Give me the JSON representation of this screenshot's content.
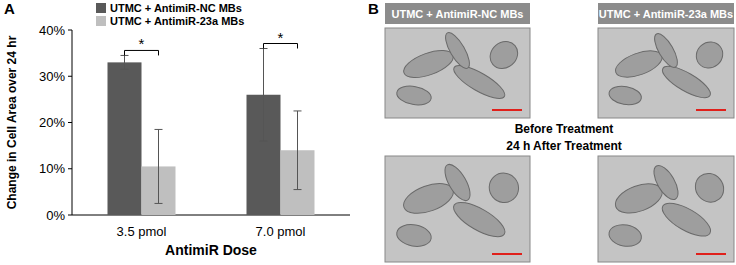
{
  "chart_data": {
    "type": "bar",
    "panel_label": "A",
    "y_label": "Change in Cell Area over 24 hr",
    "x_label": "AntimiR Dose",
    "categories": [
      "3.5 pmol",
      "7.0 pmol"
    ],
    "series": [
      {
        "name": "UTMC + AntimiR-NC MBs",
        "color": "#595959",
        "values": [
          33,
          26
        ],
        "errors": [
          1.5,
          10
        ]
      },
      {
        "name": "UTMC + AntimiR-23a MBs",
        "color": "#bfbfbf",
        "values": [
          10.5,
          14
        ],
        "errors": [
          8,
          8.5
        ]
      }
    ],
    "annotations": [
      "*",
      "*"
    ],
    "ylim": [
      0,
      40
    ],
    "yticks": [
      {
        "value": 0,
        "label": "0%"
      },
      {
        "value": 10,
        "label": "10%"
      },
      {
        "value": 20,
        "label": "20%"
      },
      {
        "value": 30,
        "label": "30%"
      },
      {
        "value": 40,
        "label": "40%"
      }
    ],
    "grid": false,
    "legend": "top-left"
  },
  "panel_b": {
    "label": "B",
    "columns": [
      "UTMC + AntimiR-NC MBs",
      "UTMC + AntimiR-23a MBs"
    ],
    "rows": [
      "Before Treatment",
      "24 h After Treatment"
    ]
  }
}
